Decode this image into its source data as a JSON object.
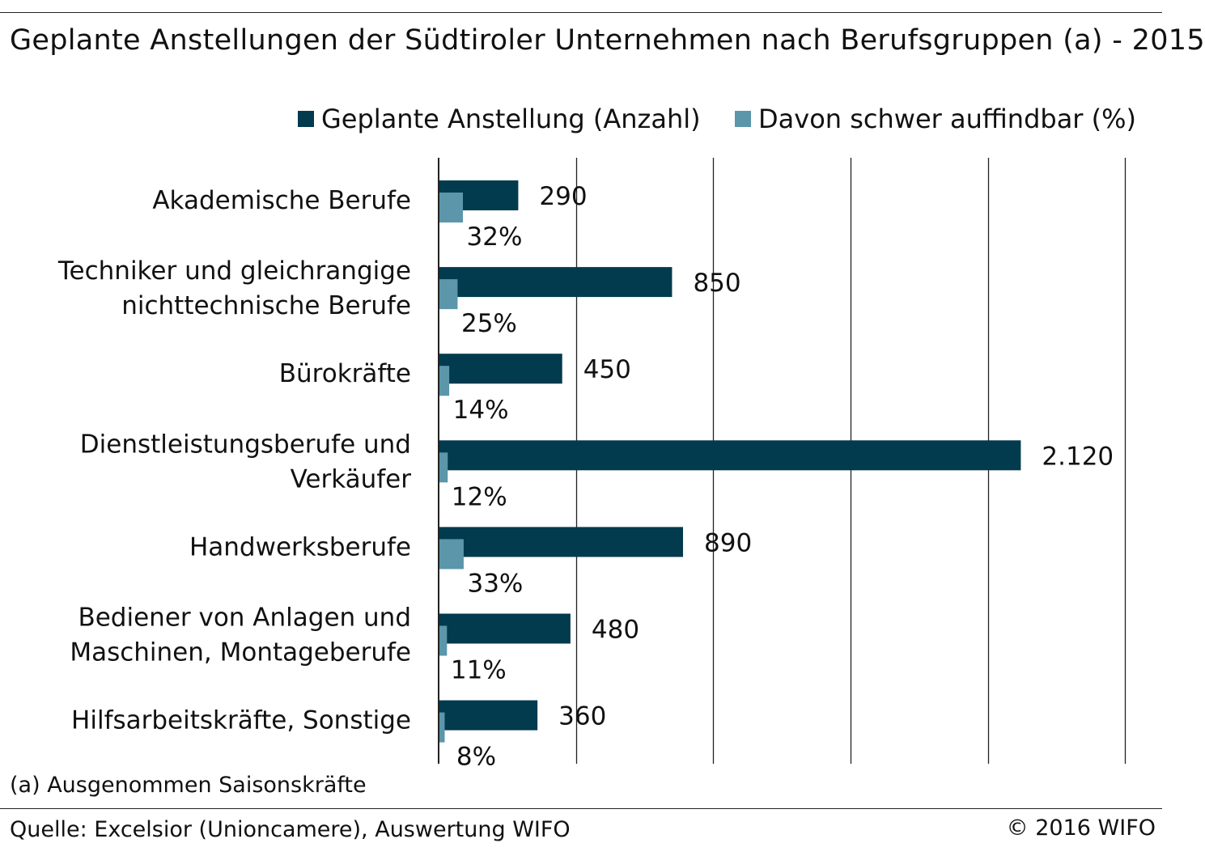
{
  "title": "Geplante Anstellungen der Südtiroler Unternehmen nach Berufsgruppen (a) - 2015",
  "footnote": "(a) Ausgenommen Saisonskräfte",
  "source": "Quelle: Excelsior (Unioncamere), Auswertung WIFO",
  "copyright": "© 2016 WIFO",
  "colors": {
    "series_count": "#023a4e",
    "series_pct": "#5b96aa",
    "gridline": "#222222"
  },
  "chart_data": {
    "type": "bar",
    "orientation": "horizontal",
    "categories": [
      [
        "Akademische Berufe"
      ],
      [
        "Techniker und gleichrangige",
        "nichttechnische Berufe"
      ],
      [
        "Bürokräfte"
      ],
      [
        "Dienstleistungsberufe und",
        "Verkäufer"
      ],
      [
        "Handwerksberufe"
      ],
      [
        "Bediener von Anlagen und",
        "Maschinen, Montageberufe"
      ],
      [
        "Hilfsarbeitskräfte, Sonstige"
      ]
    ],
    "series": [
      {
        "name": "Geplante Anstellung (Anzahl)",
        "values": [
          290,
          850,
          450,
          2120,
          890,
          480,
          360
        ],
        "labels": [
          "290",
          "850",
          "450",
          "2.120",
          "890",
          "480",
          "360"
        ]
      },
      {
        "name": "Davon schwer auffindbar (%)",
        "values": [
          32,
          25,
          14,
          12,
          33,
          11,
          8
        ],
        "labels": [
          "32%",
          "25%",
          "14%",
          "12%",
          "33%",
          "11%",
          "8%"
        ]
      }
    ],
    "xlim": [
      0,
      2500
    ],
    "grid": true,
    "legend_position": "top"
  }
}
